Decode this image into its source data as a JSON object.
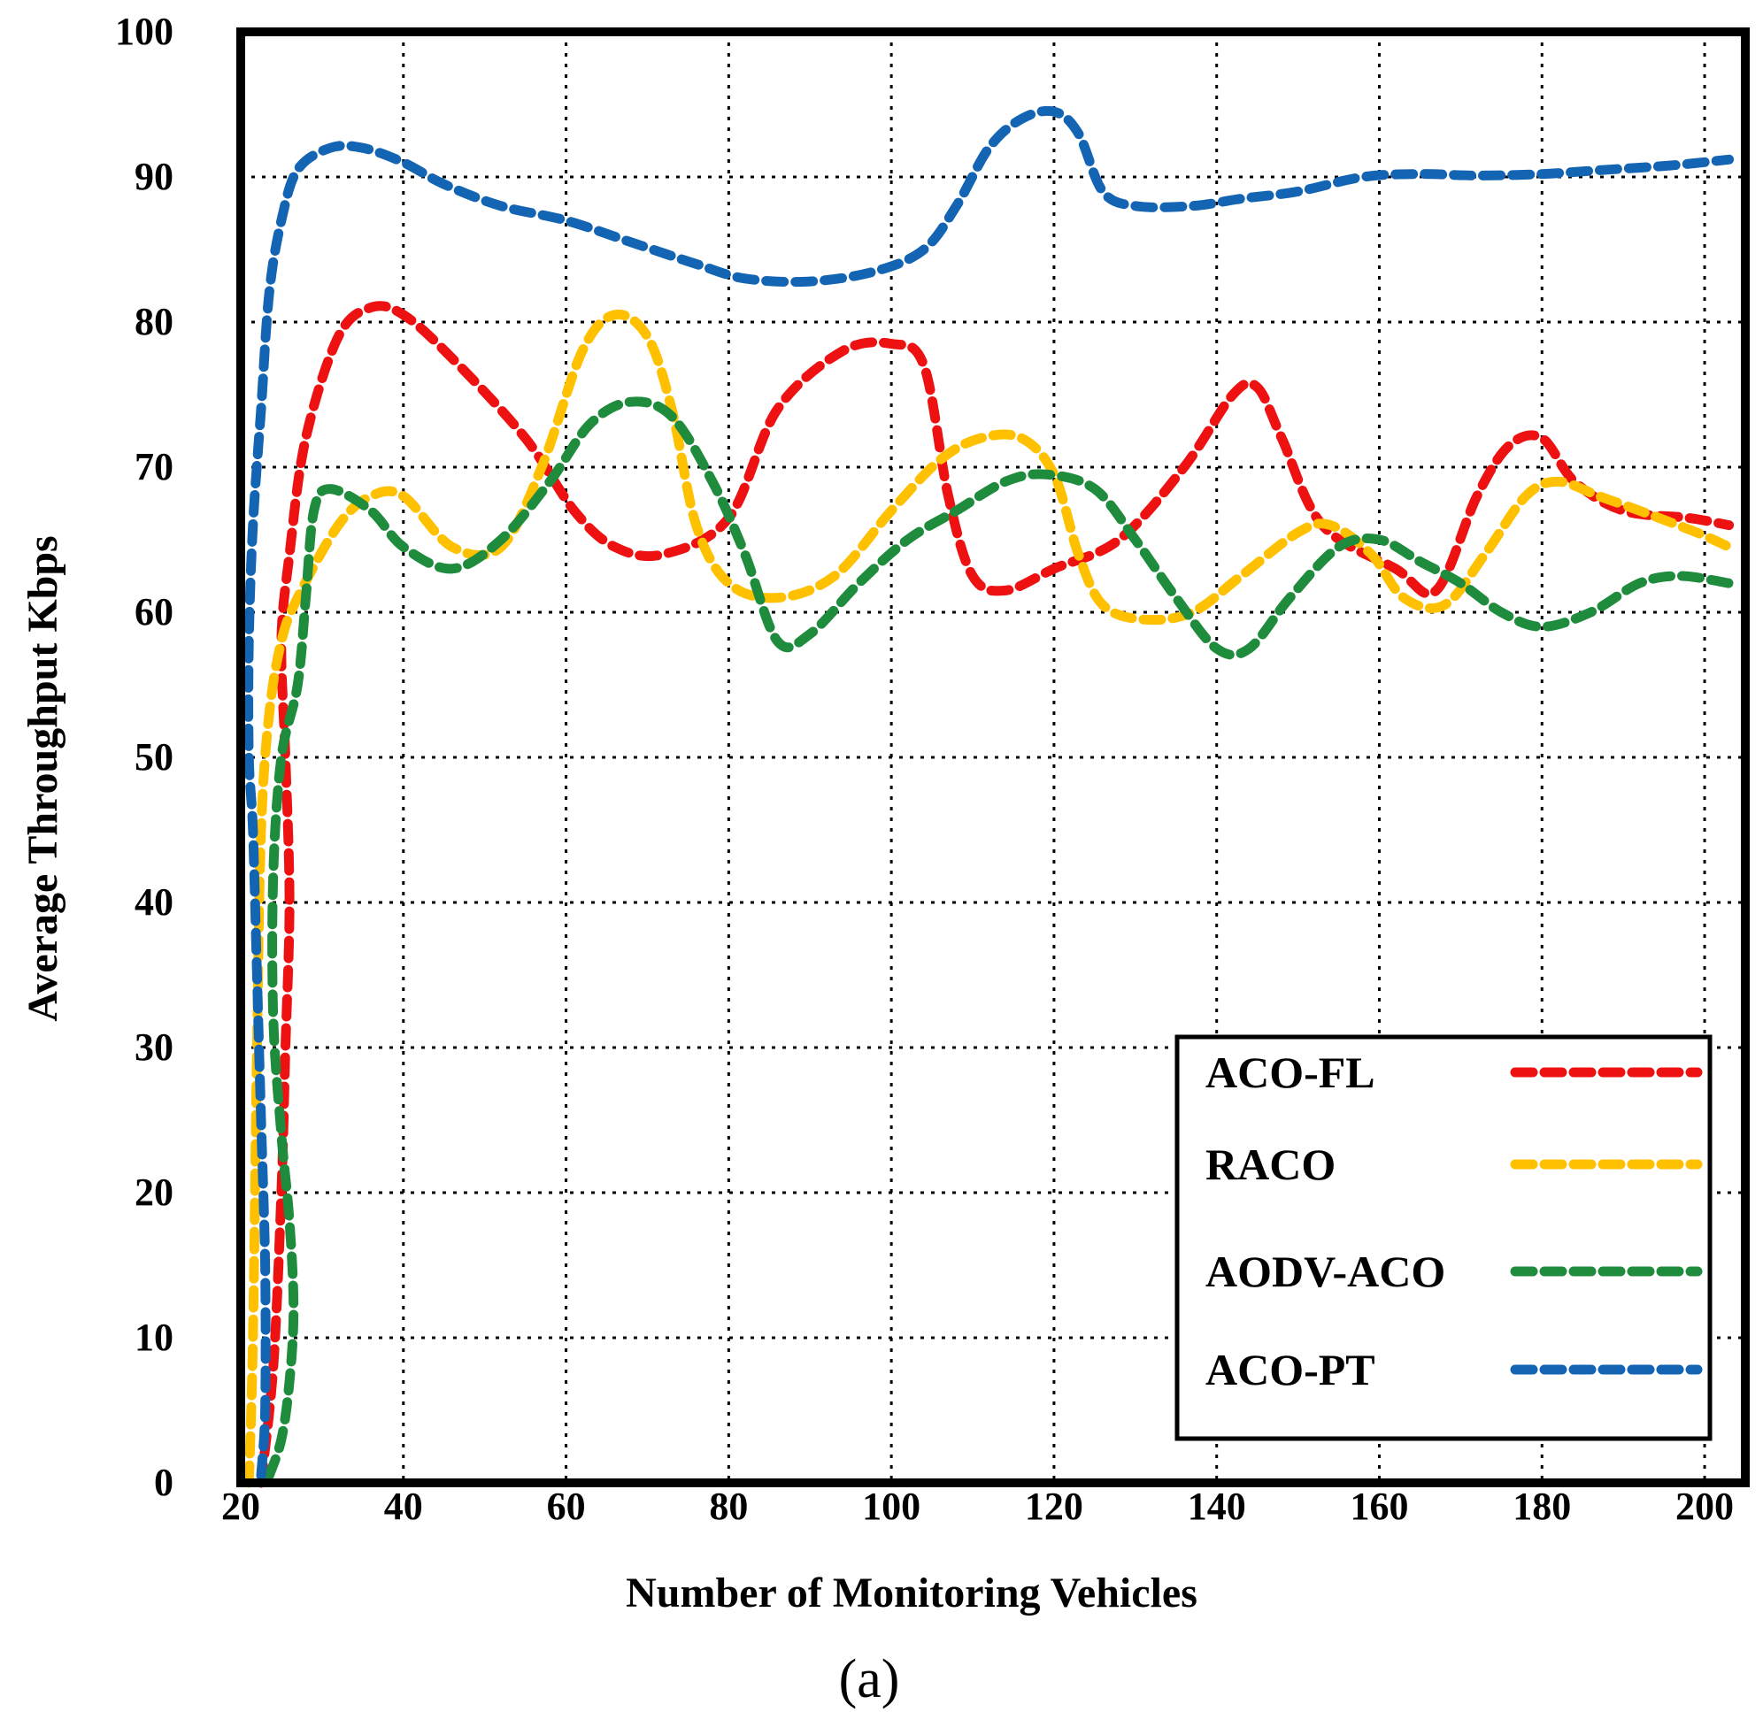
{
  "chart_data": {
    "type": "line",
    "title": "",
    "xlabel": "Number of Monitoring Vehicles",
    "ylabel": "Average Throughput Kbps",
    "caption": "(a)",
    "xlim": [
      20,
      205
    ],
    "ylim": [
      0,
      100
    ],
    "x_ticks": [
      20,
      40,
      60,
      80,
      100,
      120,
      140,
      160,
      180,
      200
    ],
    "y_ticks": [
      0,
      10,
      20,
      30,
      40,
      50,
      60,
      70,
      80,
      90,
      100
    ],
    "grid": true,
    "legend_position": "bottom-right",
    "series": [
      {
        "name": "ACO-FL",
        "color": "#ee1111",
        "points": [
          [
            22.5,
            0
          ],
          [
            24,
            8
          ],
          [
            25,
            20
          ],
          [
            25.5,
            30
          ],
          [
            26,
            40
          ],
          [
            25.5,
            50
          ],
          [
            25,
            58
          ],
          [
            26,
            64
          ],
          [
            28,
            72
          ],
          [
            32,
            79
          ],
          [
            36,
            81
          ],
          [
            40,
            80.5
          ],
          [
            46,
            77.5
          ],
          [
            55,
            72
          ],
          [
            61,
            67
          ],
          [
            66,
            64.5
          ],
          [
            72,
            64
          ],
          [
            80,
            66.5
          ],
          [
            86,
            74
          ],
          [
            94,
            78
          ],
          [
            100,
            78.5
          ],
          [
            104,
            77
          ],
          [
            107,
            68
          ],
          [
            110,
            62.5
          ],
          [
            114,
            61.5
          ],
          [
            120,
            63
          ],
          [
            128,
            65
          ],
          [
            136,
            70
          ],
          [
            142,
            75
          ],
          [
            145,
            75.5
          ],
          [
            148,
            72
          ],
          [
            153,
            66
          ],
          [
            162,
            63
          ],
          [
            167,
            61.5
          ],
          [
            172,
            68
          ],
          [
            176,
            71.5
          ],
          [
            180,
            72
          ],
          [
            184,
            69
          ],
          [
            190,
            67
          ],
          [
            198,
            66.5
          ],
          [
            203,
            66
          ]
        ]
      },
      {
        "name": "RACO",
        "color": "#ffc000",
        "points": [
          [
            21,
            0
          ],
          [
            21.5,
            10
          ],
          [
            22,
            30
          ],
          [
            22.5,
            45
          ],
          [
            23.5,
            53
          ],
          [
            25,
            58
          ],
          [
            27,
            61
          ],
          [
            32,
            66
          ],
          [
            36,
            68
          ],
          [
            40,
            68
          ],
          [
            46,
            64.5
          ],
          [
            52,
            64.5
          ],
          [
            57,
            70
          ],
          [
            62,
            78
          ],
          [
            66,
            80.5
          ],
          [
            70,
            79
          ],
          [
            73,
            74
          ],
          [
            76,
            66
          ],
          [
            80,
            62
          ],
          [
            86,
            61
          ],
          [
            93,
            62.5
          ],
          [
            100,
            67
          ],
          [
            106,
            70.5
          ],
          [
            111,
            72
          ],
          [
            116,
            72
          ],
          [
            120,
            69.5
          ],
          [
            123,
            64
          ],
          [
            126,
            60.5
          ],
          [
            131,
            59.5
          ],
          [
            137,
            60
          ],
          [
            143,
            62.5
          ],
          [
            150,
            65.5
          ],
          [
            154,
            66
          ],
          [
            159,
            64
          ],
          [
            163,
            61
          ],
          [
            168,
            60.5
          ],
          [
            173,
            64
          ],
          [
            178,
            68
          ],
          [
            182,
            69
          ],
          [
            187,
            68
          ],
          [
            192,
            67
          ],
          [
            199,
            65.5
          ],
          [
            203,
            64.5
          ]
        ]
      },
      {
        "name": "AODV-ACO",
        "color": "#1e8c3c",
        "points": [
          [
            23.5,
            0.5
          ],
          [
            25,
            3
          ],
          [
            26,
            7
          ],
          [
            26.5,
            12
          ],
          [
            26,
            18
          ],
          [
            25,
            24
          ],
          [
            24,
            32
          ],
          [
            24,
            42
          ],
          [
            25,
            50
          ],
          [
            27,
            55
          ],
          [
            28,
            61
          ],
          [
            29,
            67
          ],
          [
            31,
            68.5
          ],
          [
            36,
            67
          ],
          [
            40,
            64.5
          ],
          [
            46,
            63
          ],
          [
            52,
            65
          ],
          [
            58,
            69
          ],
          [
            63,
            73
          ],
          [
            68,
            74.5
          ],
          [
            73,
            73.5
          ],
          [
            78,
            69
          ],
          [
            82,
            64
          ],
          [
            86,
            58
          ],
          [
            90,
            58.5
          ],
          [
            96,
            62
          ],
          [
            102,
            65
          ],
          [
            108,
            67
          ],
          [
            114,
            69
          ],
          [
            119,
            69.5
          ],
          [
            125,
            68.5
          ],
          [
            130,
            65
          ],
          [
            135,
            61
          ],
          [
            140,
            57.5
          ],
          [
            144,
            57.5
          ],
          [
            149,
            61
          ],
          [
            155,
            64.5
          ],
          [
            160,
            65
          ],
          [
            165,
            63.5
          ],
          [
            170,
            62
          ],
          [
            175,
            60
          ],
          [
            180,
            59
          ],
          [
            186,
            60
          ],
          [
            192,
            62
          ],
          [
            197,
            62.5
          ],
          [
            203,
            62
          ]
        ]
      },
      {
        "name": "ACO-PT",
        "color": "#1464b4",
        "points": [
          [
            22.5,
            0.5
          ],
          [
            23,
            5
          ],
          [
            23,
            15
          ],
          [
            22.5,
            25
          ],
          [
            22,
            35
          ],
          [
            21.5,
            45
          ],
          [
            21,
            50
          ],
          [
            21,
            58
          ],
          [
            21.5,
            66
          ],
          [
            22.5,
            74
          ],
          [
            23.5,
            82
          ],
          [
            25,
            87
          ],
          [
            27,
            90.5
          ],
          [
            31,
            92
          ],
          [
            35,
            92
          ],
          [
            40,
            91
          ],
          [
            45,
            89.5
          ],
          [
            52,
            88
          ],
          [
            60,
            87
          ],
          [
            68,
            85.5
          ],
          [
            76,
            84
          ],
          [
            82,
            83
          ],
          [
            90,
            82.8
          ],
          [
            98,
            83.5
          ],
          [
            104,
            85
          ],
          [
            108,
            88
          ],
          [
            112,
            92
          ],
          [
            116,
            94
          ],
          [
            120,
            94.5
          ],
          [
            123,
            93
          ],
          [
            126,
            89
          ],
          [
            130,
            88
          ],
          [
            137,
            88
          ],
          [
            143,
            88.5
          ],
          [
            150,
            89
          ],
          [
            158,
            90
          ],
          [
            165,
            90.2
          ],
          [
            172,
            90.1
          ],
          [
            180,
            90.2
          ],
          [
            188,
            90.5
          ],
          [
            196,
            90.8
          ],
          [
            203,
            91.2
          ]
        ]
      }
    ]
  }
}
